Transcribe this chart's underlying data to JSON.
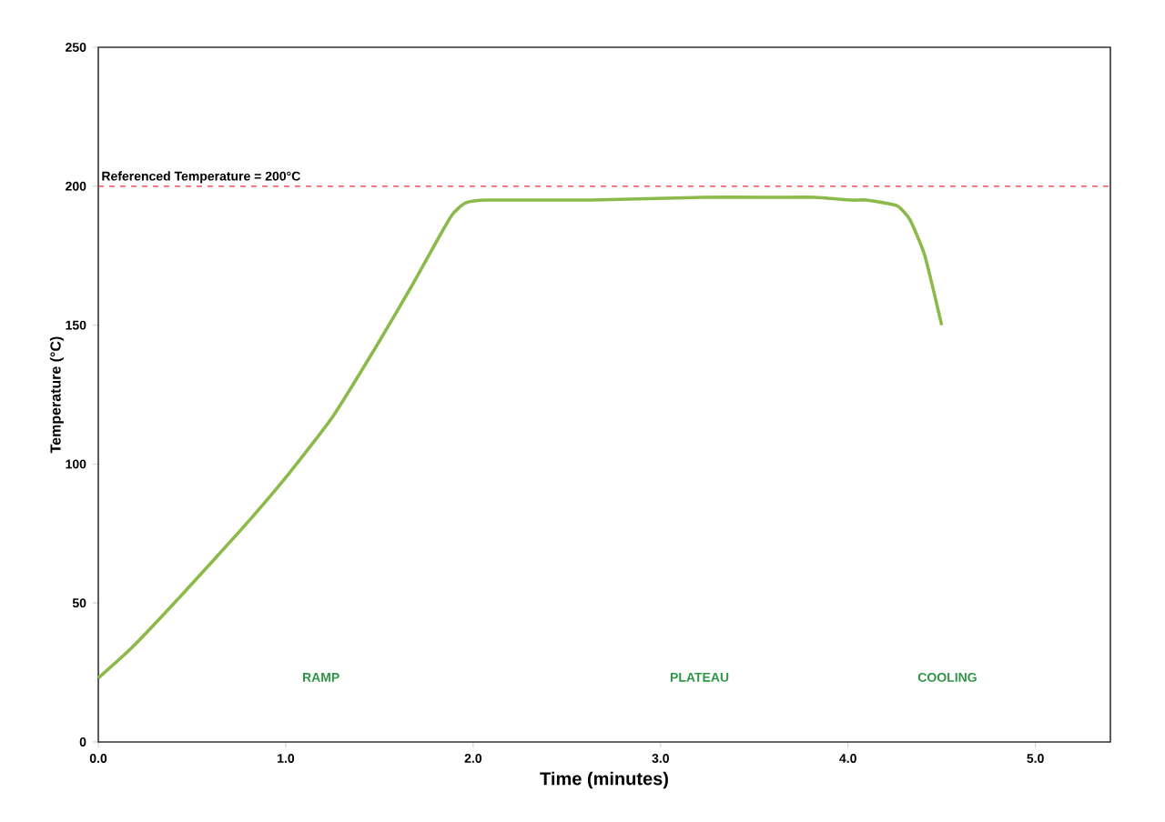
{
  "chart_data": {
    "type": "line",
    "xlabel": "Time (minutes)",
    "ylabel": "Temperature (°C)",
    "xlim": [
      0,
      5.4
    ],
    "ylim": [
      0,
      250
    ],
    "xticks": [
      {
        "value": 0,
        "label": "0.0"
      },
      {
        "value": 1,
        "label": "1.0"
      },
      {
        "value": 2,
        "label": "2.0"
      },
      {
        "value": 3,
        "label": "3.0"
      },
      {
        "value": 4,
        "label": "4.0"
      },
      {
        "value": 5,
        "label": "5.0"
      }
    ],
    "yticks": [
      0,
      50,
      100,
      150,
      200,
      250
    ],
    "x": [
      0,
      0.18,
      0.46,
      0.77,
      1.01,
      1.25,
      1.48,
      1.68,
      1.88,
      1.96,
      2.08,
      2.63,
      3.23,
      3.62,
      3.82,
      4.02,
      4.1,
      4.26,
      4.33,
      4.41,
      4.5
    ],
    "series": [
      {
        "color": "#8cba4a",
        "values": [
          23,
          34,
          54,
          77,
          96,
          117,
          142,
          165,
          189,
          194,
          195,
          195,
          196,
          196,
          196,
          195,
          195,
          193,
          188,
          175,
          150
        ]
      }
    ],
    "ref_lines": [
      {
        "axis": "y",
        "value": 200,
        "label": "Referenced Temperature = 200°C",
        "color": "#e8303a",
        "line_style": "dashed"
      }
    ],
    "annotations": [
      "RAMP",
      "PLATEAU",
      "COOLING"
    ],
    "marker": "none",
    "line_style": "solid"
  }
}
